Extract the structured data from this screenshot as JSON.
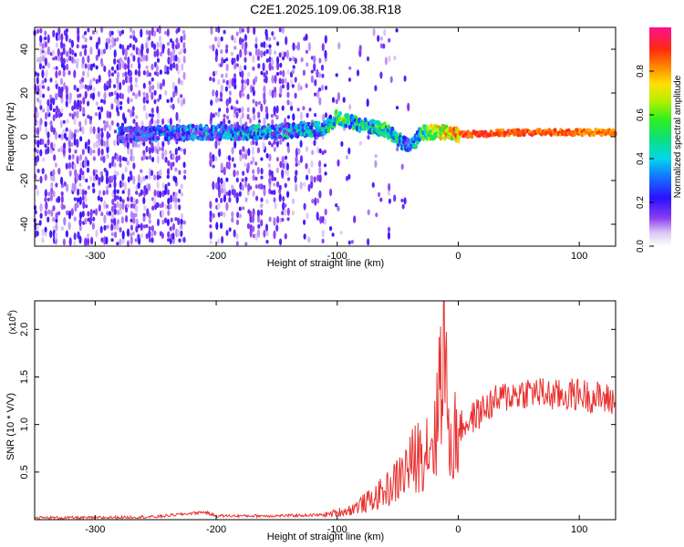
{
  "title": "C2E1.2025.109.06.38.R18",
  "colors": {
    "snr_line": "#e8312f",
    "axis": "#000000",
    "bg": "#ffffff"
  },
  "colorbar": {
    "label": "Normalized spectral amplitude",
    "ticks": [
      "0.0",
      "0.2",
      "0.4",
      "0.6",
      "0.8"
    ],
    "tick_values": [
      0.0,
      0.2,
      0.4,
      0.6,
      0.8
    ],
    "range": [
      0,
      1
    ]
  },
  "chart_data": [
    {
      "type": "heatmap",
      "title": "C2E1.2025.109.06.38.R18",
      "xlabel": "Height of straight line (km)",
      "ylabel": "Frequency (Hz)",
      "xlim": [
        -350,
        130
      ],
      "ylim": [
        -50,
        50
      ],
      "x_ticks": [
        -300,
        -200,
        -100,
        0,
        100
      ],
      "x_tick_labels": [
        "-300",
        "-200",
        "-100",
        "0",
        "100"
      ],
      "y_ticks": [
        -40,
        -20,
        0,
        20,
        40
      ],
      "y_tick_labels": [
        "-40",
        "-20",
        "0",
        "20",
        "40"
      ],
      "colormap": "normalized spectral amplitude 0 (white/violet) to 1 (magenta/red)",
      "dominant_track": [
        {
          "x": -270,
          "y": 1,
          "amp": 0.35
        },
        {
          "x": -230,
          "y": 2,
          "amp": 0.45
        },
        {
          "x": -160,
          "y": 2,
          "amp": 0.5
        },
        {
          "x": -110,
          "y": 4,
          "amp": 0.55
        },
        {
          "x": -100,
          "y": 9,
          "amp": 0.7
        },
        {
          "x": -85,
          "y": 6,
          "amp": 0.6
        },
        {
          "x": -60,
          "y": 3,
          "amp": 0.65
        },
        {
          "x": -40,
          "y": -5,
          "amp": 0.4
        },
        {
          "x": -30,
          "y": 2,
          "amp": 0.7
        },
        {
          "x": -15,
          "y": 2,
          "amp": 0.85
        },
        {
          "x": 0,
          "y": 1,
          "amp": 0.95
        },
        {
          "x": 50,
          "y": 2,
          "amp": 0.95
        },
        {
          "x": 130,
          "y": 2,
          "amp": 0.9
        }
      ]
    },
    {
      "type": "line",
      "xlabel": "Height of straight line (km)",
      "ylabel": "SNR (10 * V/V)",
      "y_multiplier": "(x10",
      "y_multiplier_exp": "4",
      "y_multiplier_close": ")",
      "xlim": [
        -350,
        130
      ],
      "ylim": [
        0,
        2.3
      ],
      "x_ticks": [
        -300,
        -200,
        -100,
        0,
        100
      ],
      "x_tick_labels": [
        "-300",
        "-200",
        "-100",
        "0",
        "100"
      ],
      "y_ticks": [
        0.5,
        1.0,
        1.5,
        2.0
      ],
      "y_tick_labels": [
        "0.5",
        "1.0",
        "1.5",
        "2.0"
      ],
      "series": [
        {
          "x": [
            -350,
            -300,
            -250,
            -210,
            -200,
            -150,
            -110,
            -90,
            -70,
            -55,
            -45,
            -35,
            -25,
            -18,
            -12,
            -8,
            0,
            10,
            25,
            40,
            60,
            80,
            100,
            115,
            130
          ],
          "y": [
            0.02,
            0.02,
            0.03,
            0.08,
            0.04,
            0.04,
            0.05,
            0.1,
            0.22,
            0.35,
            0.5,
            0.65,
            0.8,
            0.9,
            2.3,
            0.75,
            0.95,
            1.05,
            1.2,
            1.3,
            1.35,
            1.3,
            1.32,
            1.28,
            1.25
          ]
        }
      ]
    }
  ]
}
